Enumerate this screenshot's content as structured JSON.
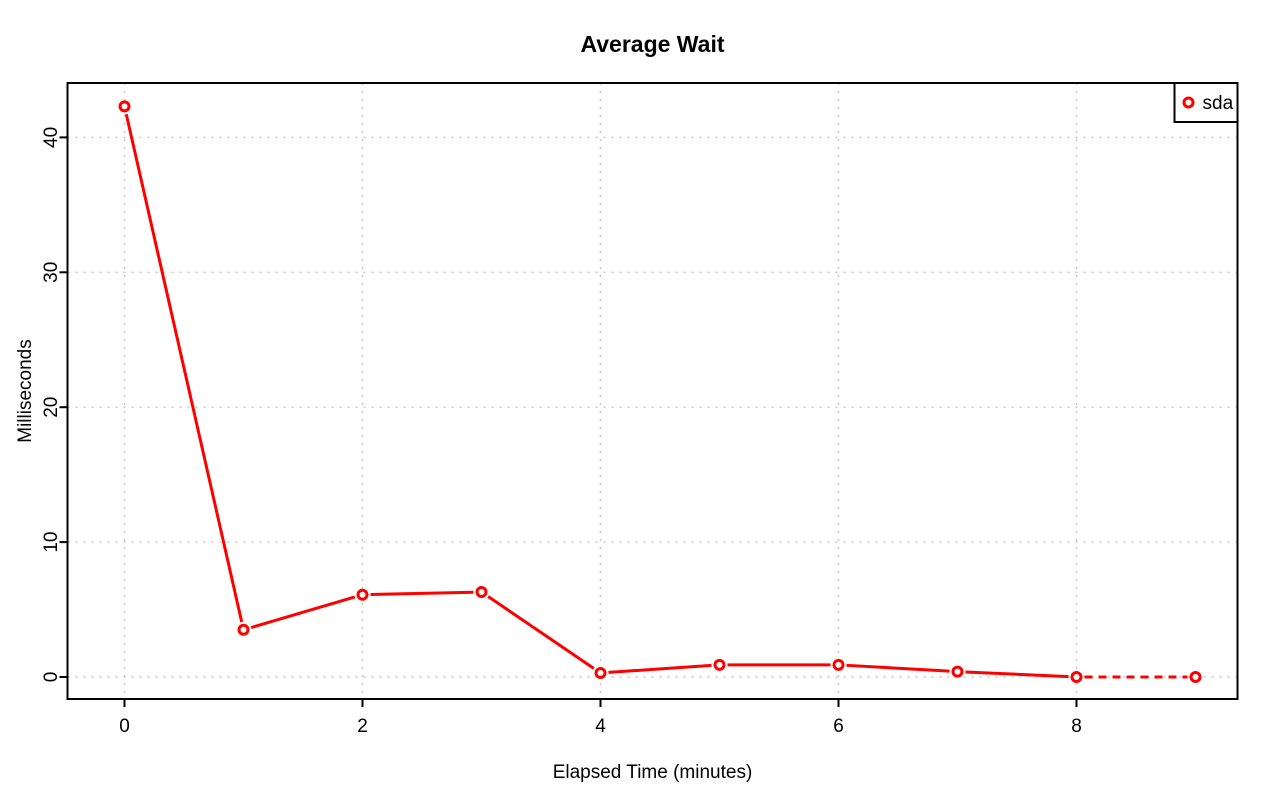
{
  "page": {
    "background": "#FFFFFF"
  },
  "chart_data": {
    "type": "line",
    "title": "Average Wait",
    "xlabel": "Elapsed Time (minutes)",
    "ylabel": "Milliseconds",
    "x": [
      0,
      1,
      2,
      3,
      4,
      5,
      6,
      7,
      8,
      9
    ],
    "series": [
      {
        "name": "sda",
        "color": "#FF0000",
        "marker": "open-circle",
        "line_style": "solid",
        "dashed_from_x": 8,
        "values": [
          42.3,
          3.5,
          6.1,
          6.3,
          0.3,
          0.9,
          0.9,
          0.4,
          0.0,
          0.0
        ]
      }
    ],
    "xticks": [
      0,
      2,
      4,
      6,
      8
    ],
    "yticks": [
      0,
      10,
      20,
      30,
      40
    ],
    "xlim": [
      -0.48,
      9.36
    ],
    "ylim": [
      -1.63,
      44.05
    ],
    "grid": {
      "style": "dotted",
      "color": "#C4C4C4",
      "at_xticks": true,
      "at_yticks": true
    },
    "legend": {
      "position": "top-right",
      "entries": [
        {
          "label": "sda",
          "color": "#FF0000",
          "marker": "open-circle"
        }
      ]
    },
    "colors": {
      "frame": "#000000",
      "text": "#000000",
      "line": "#FF0000",
      "grid": "#C4C4C4",
      "background": "#FFFFFF"
    }
  }
}
